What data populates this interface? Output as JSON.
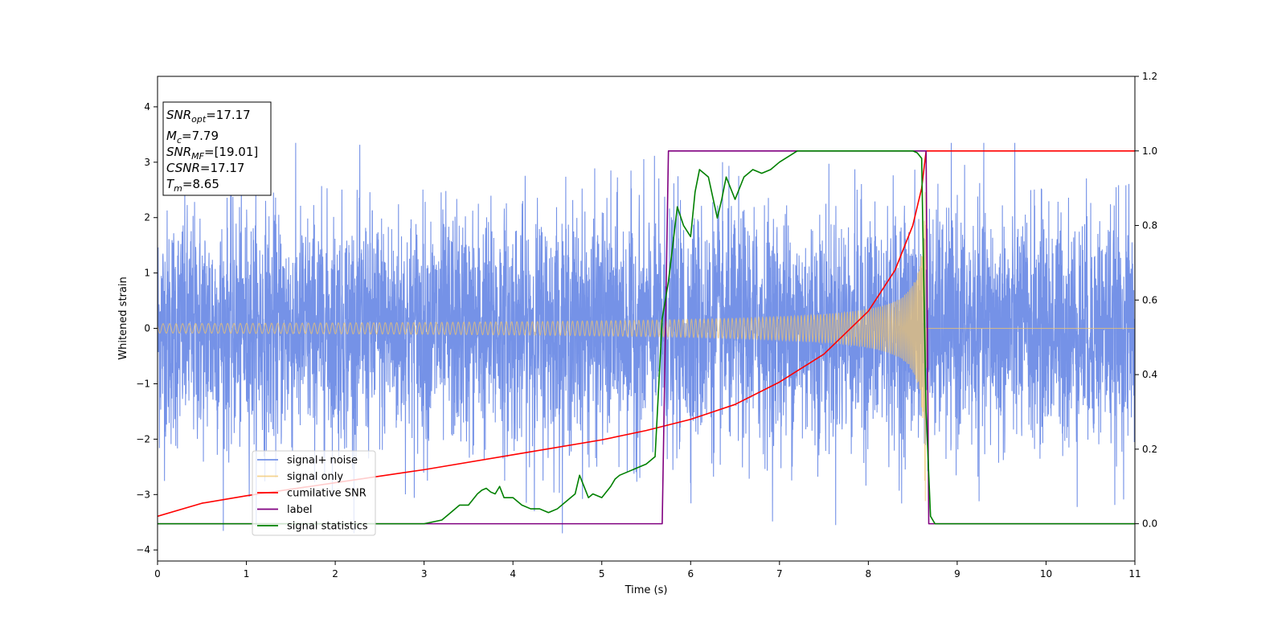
{
  "chart_data": {
    "type": "line",
    "xlabel": "Time (s)",
    "ylabel": "Whitened strain",
    "xlim": [
      0,
      11
    ],
    "ylim_left": [
      -4.2,
      4.55
    ],
    "ylim_right": [
      -0.1,
      1.2
    ],
    "xticks": [
      "0",
      "1",
      "2",
      "3",
      "4",
      "5",
      "6",
      "7",
      "8",
      "9",
      "10",
      "11"
    ],
    "yticks_left": [
      "−4",
      "−3",
      "−2",
      "−1",
      "0",
      "1",
      "2",
      "3",
      "4"
    ],
    "yticks_right": [
      "0.0",
      "0.2",
      "0.4",
      "0.6",
      "0.8",
      "1.0",
      "1.2"
    ],
    "grid": false,
    "legend_position": "lower-left",
    "annotation": [
      {
        "base": "SNR",
        "sub": "opt",
        "value": "=17.17"
      },
      {
        "base": "M",
        "sub": "c",
        "value": "=7.79"
      },
      {
        "base": "SNR",
        "sub": "MF",
        "value": "=[19.01]"
      },
      {
        "base": "CSNR",
        "sub": "",
        "value": "=17.17"
      },
      {
        "base": "T",
        "sub": "m",
        "value": "=8.65"
      }
    ],
    "series": [
      {
        "name": "signal+ noise",
        "color": "#6e8ce6",
        "axis": "left",
        "kind": "noise",
        "amplitude_range": [
          -3.7,
          3.35
        ]
      },
      {
        "name": "signal only",
        "color": "#f2c66b",
        "axis": "left",
        "kind": "chirp",
        "merger_time": 8.65,
        "peak_amplitude": 3.2
      },
      {
        "name": "cumilative SNR",
        "color": "#ff0000",
        "axis": "right",
        "x": [
          0,
          0.5,
          1,
          2,
          3,
          4,
          5,
          5.5,
          6,
          6.5,
          7,
          7.5,
          8,
          8.3,
          8.5,
          8.6,
          8.65,
          11
        ],
        "y": [
          0.02,
          0.055,
          0.075,
          0.11,
          0.145,
          0.185,
          0.225,
          0.25,
          0.28,
          0.32,
          0.38,
          0.455,
          0.57,
          0.68,
          0.8,
          0.9,
          1.0,
          1.0
        ]
      },
      {
        "name": "label",
        "color": "#800080",
        "axis": "right",
        "x": [
          0,
          5.68,
          5.75,
          8.65,
          8.68,
          11
        ],
        "y": [
          0,
          0,
          1,
          1,
          0,
          0
        ]
      },
      {
        "name": "signal statistics",
        "color": "#008000",
        "axis": "right",
        "x": [
          0,
          2.5,
          3.0,
          3.2,
          3.3,
          3.4,
          3.5,
          3.6,
          3.65,
          3.7,
          3.75,
          3.8,
          3.85,
          3.9,
          4.0,
          4.1,
          4.2,
          4.3,
          4.4,
          4.5,
          4.6,
          4.7,
          4.75,
          4.8,
          4.85,
          4.9,
          5.0,
          5.1,
          5.15,
          5.2,
          5.3,
          5.4,
          5.5,
          5.6,
          5.68,
          5.75,
          5.85,
          5.92,
          6.0,
          6.05,
          6.1,
          6.2,
          6.3,
          6.35,
          6.4,
          6.5,
          6.6,
          6.7,
          6.8,
          6.9,
          7.0,
          7.2,
          8.5,
          8.55,
          8.6,
          8.62,
          8.65,
          8.7,
          8.75,
          11
        ],
        "y": [
          0.0,
          0.0,
          0.0,
          0.01,
          0.03,
          0.05,
          0.05,
          0.08,
          0.09,
          0.095,
          0.085,
          0.08,
          0.1,
          0.07,
          0.07,
          0.05,
          0.04,
          0.04,
          0.03,
          0.04,
          0.06,
          0.08,
          0.13,
          0.1,
          0.07,
          0.08,
          0.07,
          0.1,
          0.12,
          0.13,
          0.14,
          0.15,
          0.16,
          0.18,
          0.55,
          0.65,
          0.85,
          0.8,
          0.77,
          0.89,
          0.95,
          0.93,
          0.82,
          0.87,
          0.93,
          0.87,
          0.93,
          0.95,
          0.94,
          0.95,
          0.97,
          1.0,
          1.0,
          0.995,
          0.98,
          0.7,
          0.3,
          0.02,
          0.0,
          0.0
        ]
      }
    ]
  }
}
